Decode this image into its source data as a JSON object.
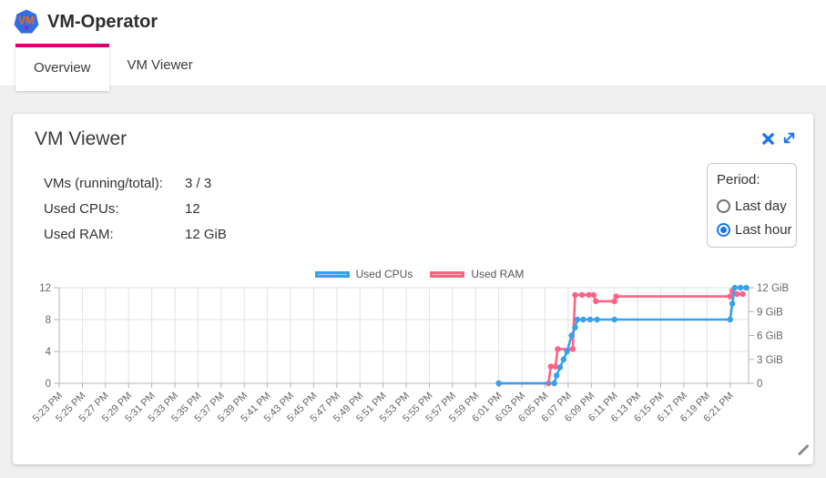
{
  "header": {
    "title": "VM-Operator",
    "logo_text": "VM"
  },
  "tabs": [
    {
      "label": "Overview",
      "active": true
    },
    {
      "label": "VM Viewer",
      "active": false
    }
  ],
  "card": {
    "title": "VM Viewer",
    "stats": [
      {
        "label": "VMs (running/total):",
        "value": "3 / 3"
      },
      {
        "label": "Used CPUs:",
        "value": "12"
      },
      {
        "label": "Used RAM:",
        "value": "12 GiB"
      }
    ],
    "period": {
      "label": "Period:",
      "options": [
        {
          "label": "Last day",
          "selected": false
        },
        {
          "label": "Last hour",
          "selected": true
        }
      ]
    }
  },
  "colors": {
    "accent_blue": "#1676f3",
    "tab_indicator": "#d4006e",
    "logo_blue": "#326de6",
    "logo_text_orange": "#f3690e",
    "logo_caret": "#b01aa7",
    "cpu_line": "#36a2eb",
    "ram_line": "#ff6384"
  },
  "chart_data": {
    "type": "line",
    "title": "",
    "legend_position": "top",
    "grid": true,
    "x_axis": {
      "unit": "time",
      "minutes_range": [
        0,
        59.6
      ],
      "tick_interval_minutes": 2,
      "first_tick_label": "5:23 PM",
      "last_tick_label": "6:21 PM"
    },
    "x_tick_labels": [
      "5:23 PM",
      "5:25 PM",
      "5:27 PM",
      "5:29 PM",
      "5:31 PM",
      "5:33 PM",
      "5:35 PM",
      "5:37 PM",
      "5:39 PM",
      "5:41 PM",
      "5:43 PM",
      "5:45 PM",
      "5:47 PM",
      "5:49 PM",
      "5:51 PM",
      "5:53 PM",
      "5:55 PM",
      "5:57 PM",
      "5:59 PM",
      "6:01 PM",
      "6:03 PM",
      "6:05 PM",
      "6:07 PM",
      "6:09 PM",
      "6:11 PM",
      "6:13 PM",
      "6:15 PM",
      "6:17 PM",
      "6:19 PM",
      "6:21 PM"
    ],
    "left_axis": {
      "label": "",
      "min": 0,
      "max": 12,
      "ticks": [
        0,
        4,
        8,
        12
      ]
    },
    "right_axis": {
      "label": "",
      "min": 0,
      "max": 12,
      "tick_values": [
        0,
        3,
        6,
        9,
        12
      ],
      "tick_labels": [
        "0",
        "3 GiB",
        "6 GiB",
        "9 GiB",
        "12 GiB"
      ]
    },
    "series": [
      {
        "name": "Used CPUs",
        "axis": "left",
        "color": "#36a2eb",
        "legend_fill": "#a6d4f5",
        "points_minutes_after_523pm": [
          [
            38,
            0
          ],
          [
            42.8,
            0
          ],
          [
            43.0,
            1
          ],
          [
            43.3,
            2
          ],
          [
            43.6,
            3
          ],
          [
            43.9,
            4
          ],
          [
            44.3,
            6
          ],
          [
            44.6,
            7
          ],
          [
            44.8,
            8
          ],
          [
            45.3,
            8
          ],
          [
            45.9,
            8
          ],
          [
            46.5,
            8
          ],
          [
            48.0,
            8
          ],
          [
            58.0,
            8
          ],
          [
            58.2,
            10
          ],
          [
            58.4,
            12
          ],
          [
            58.9,
            12
          ],
          [
            59.4,
            12
          ]
        ]
      },
      {
        "name": "Used RAM",
        "axis": "right",
        "color": "#ff6384",
        "legend_fill": "#ffb1c1",
        "points_minutes_after_523pm": [
          [
            38,
            0
          ],
          [
            42.3,
            0
          ],
          [
            42.5,
            2.1
          ],
          [
            42.9,
            2.1
          ],
          [
            43.1,
            4.3
          ],
          [
            44.4,
            4.3
          ],
          [
            44.6,
            11.1
          ],
          [
            45.2,
            11.1
          ],
          [
            45.8,
            11.1
          ],
          [
            46.2,
            11.1
          ],
          [
            46.4,
            10.3
          ],
          [
            48.0,
            10.3
          ],
          [
            48.15,
            10.9
          ],
          [
            58.0,
            10.9
          ],
          [
            58.2,
            11.6
          ],
          [
            58.6,
            11.2
          ],
          [
            59.1,
            11.2
          ]
        ]
      }
    ]
  }
}
